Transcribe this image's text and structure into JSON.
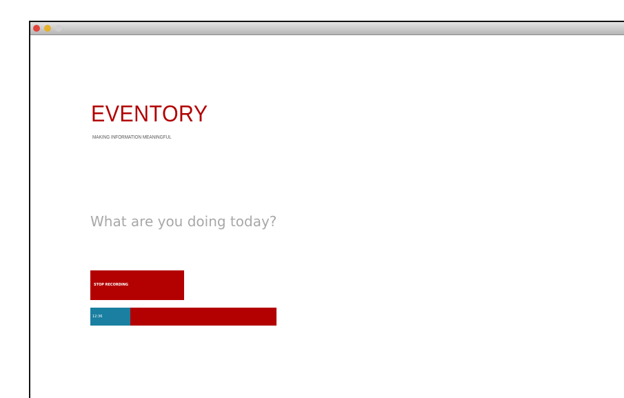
{
  "app": {
    "logo": "EVENTORY",
    "tagline": "MAKING INFORMATION MEANINGFUL",
    "prompt": "What are you doing today?",
    "button": "STOP RECORDING",
    "timer": "12:36"
  }
}
